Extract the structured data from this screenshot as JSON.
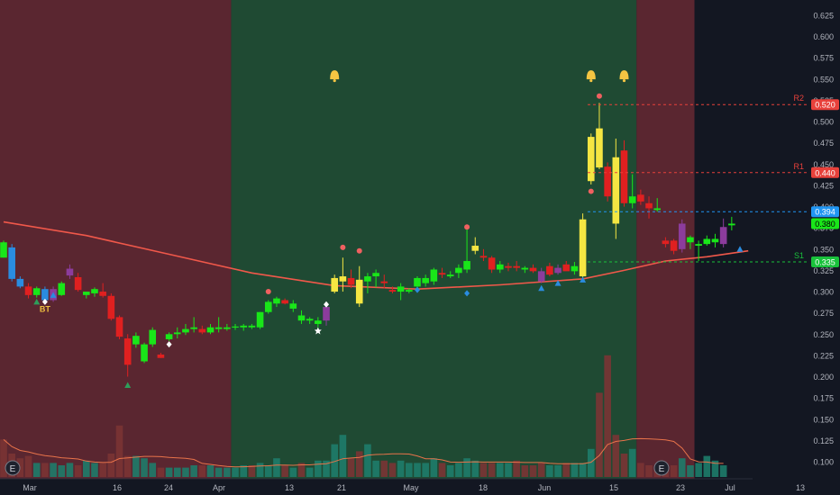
{
  "chart_data": {
    "type": "candlestick",
    "title": "",
    "xlabel": "",
    "ylabel": "",
    "ylim": [
      0.08,
      0.635
    ],
    "y_ticks": [
      0.625,
      0.6,
      0.575,
      0.55,
      0.525,
      0.5,
      0.475,
      0.45,
      0.425,
      0.4,
      0.375,
      0.35,
      0.325,
      0.3,
      0.275,
      0.25,
      0.225,
      0.2,
      0.175,
      0.15,
      0.125,
      0.1
    ],
    "x_tick_labels": [
      "Mar",
      "16",
      "24",
      "Apr",
      "13",
      "21",
      "May",
      "18",
      "Jun",
      "15",
      "23",
      "Jul",
      "13"
    ],
    "regions": [
      {
        "state": "bear",
        "from": 0,
        "to": 28,
        "color": "#5a2630"
      },
      {
        "state": "bull",
        "from": 28,
        "to": 77,
        "color": "#1f4a33"
      },
      {
        "state": "bear",
        "from": 77,
        "to": 84,
        "color": "#5a2630"
      }
    ],
    "candles": [
      {
        "o": 0.358,
        "h": 0.36,
        "l": 0.34,
        "c": 0.34,
        "col": "#19e619"
      },
      {
        "o": 0.352,
        "h": 0.356,
        "l": 0.312,
        "c": 0.315,
        "col": "#2a8ce0"
      },
      {
        "o": 0.315,
        "h": 0.318,
        "l": 0.304,
        "c": 0.306,
        "col": "#2a8ce0"
      },
      {
        "o": 0.306,
        "h": 0.31,
        "l": 0.292,
        "c": 0.296,
        "col": "#e02020"
      },
      {
        "o": 0.296,
        "h": 0.306,
        "l": 0.293,
        "c": 0.304,
        "col": "#19e619"
      },
      {
        "o": 0.303,
        "h": 0.306,
        "l": 0.288,
        "c": 0.29,
        "col": "#2a8ce0"
      },
      {
        "o": 0.29,
        "h": 0.306,
        "l": 0.288,
        "c": 0.303,
        "col": "#8c3c9c"
      },
      {
        "o": 0.296,
        "h": 0.312,
        "l": 0.295,
        "c": 0.31,
        "col": "#19e619"
      },
      {
        "o": 0.319,
        "h": 0.332,
        "l": 0.315,
        "c": 0.327,
        "col": "#8c3c9c"
      },
      {
        "o": 0.317,
        "h": 0.322,
        "l": 0.3,
        "c": 0.302,
        "col": "#e02020"
      },
      {
        "o": 0.296,
        "h": 0.3,
        "l": 0.292,
        "c": 0.3,
        "col": "#19e619"
      },
      {
        "o": 0.298,
        "h": 0.305,
        "l": 0.294,
        "c": 0.303,
        "col": "#19e619"
      },
      {
        "o": 0.3,
        "h": 0.31,
        "l": 0.293,
        "c": 0.295,
        "col": "#e02020"
      },
      {
        "o": 0.295,
        "h": 0.298,
        "l": 0.266,
        "c": 0.268,
        "col": "#e02020"
      },
      {
        "o": 0.27,
        "h": 0.272,
        "l": 0.244,
        "c": 0.247,
        "col": "#e02020"
      },
      {
        "o": 0.245,
        "h": 0.25,
        "l": 0.2,
        "c": 0.214,
        "col": "#e02020"
      },
      {
        "o": 0.238,
        "h": 0.252,
        "l": 0.234,
        "c": 0.248,
        "col": "#19e619"
      },
      {
        "o": 0.218,
        "h": 0.24,
        "l": 0.216,
        "c": 0.238,
        "col": "#19e619"
      },
      {
        "o": 0.238,
        "h": 0.258,
        "l": 0.235,
        "c": 0.255,
        "col": "#19e619"
      },
      {
        "o": 0.226,
        "h": 0.228,
        "l": 0.222,
        "c": 0.222,
        "col": "#e02020"
      },
      {
        "o": 0.244,
        "h": 0.252,
        "l": 0.242,
        "c": 0.25,
        "col": "#19e619"
      },
      {
        "o": 0.25,
        "h": 0.258,
        "l": 0.245,
        "c": 0.252,
        "col": "#19e619"
      },
      {
        "o": 0.252,
        "h": 0.262,
        "l": 0.249,
        "c": 0.256,
        "col": "#19e619"
      },
      {
        "o": 0.256,
        "h": 0.27,
        "l": 0.252,
        "c": 0.258,
        "col": "#19e619"
      },
      {
        "o": 0.256,
        "h": 0.26,
        "l": 0.25,
        "c": 0.252,
        "col": "#e02020"
      },
      {
        "o": 0.252,
        "h": 0.262,
        "l": 0.25,
        "c": 0.258,
        "col": "#19e619"
      },
      {
        "o": 0.256,
        "h": 0.27,
        "l": 0.252,
        "c": 0.258,
        "col": "#19e619"
      },
      {
        "o": 0.256,
        "h": 0.262,
        "l": 0.254,
        "c": 0.258,
        "col": "#19e619"
      },
      {
        "o": 0.258,
        "h": 0.262,
        "l": 0.255,
        "c": 0.259,
        "col": "#19e619"
      },
      {
        "o": 0.258,
        "h": 0.262,
        "l": 0.254,
        "c": 0.26,
        "col": "#19e619"
      },
      {
        "o": 0.26,
        "h": 0.262,
        "l": 0.256,
        "c": 0.258,
        "col": "#19e619"
      },
      {
        "o": 0.258,
        "h": 0.276,
        "l": 0.256,
        "c": 0.276,
        "col": "#19e619"
      },
      {
        "o": 0.276,
        "h": 0.29,
        "l": 0.274,
        "c": 0.288,
        "col": "#19e619"
      },
      {
        "o": 0.286,
        "h": 0.294,
        "l": 0.282,
        "c": 0.292,
        "col": "#19e619"
      },
      {
        "o": 0.29,
        "h": 0.292,
        "l": 0.285,
        "c": 0.286,
        "col": "#e02020"
      },
      {
        "o": 0.28,
        "h": 0.29,
        "l": 0.276,
        "c": 0.286,
        "col": "#19e619"
      },
      {
        "o": 0.272,
        "h": 0.278,
        "l": 0.262,
        "c": 0.266,
        "col": "#19e619"
      },
      {
        "o": 0.266,
        "h": 0.27,
        "l": 0.262,
        "c": 0.268,
        "col": "#19e619"
      },
      {
        "o": 0.262,
        "h": 0.27,
        "l": 0.258,
        "c": 0.266,
        "col": "#19e619"
      },
      {
        "o": 0.266,
        "h": 0.286,
        "l": 0.26,
        "c": 0.282,
        "col": "#8c3c9c"
      },
      {
        "o": 0.3,
        "h": 0.32,
        "l": 0.298,
        "c": 0.316,
        "col": "#f5e642"
      },
      {
        "o": 0.312,
        "h": 0.34,
        "l": 0.3,
        "c": 0.318,
        "col": "#f5e642"
      },
      {
        "o": 0.316,
        "h": 0.326,
        "l": 0.304,
        "c": 0.308,
        "col": "#e02020"
      },
      {
        "o": 0.314,
        "h": 0.33,
        "l": 0.282,
        "c": 0.286,
        "col": "#f5e642"
      },
      {
        "o": 0.312,
        "h": 0.322,
        "l": 0.298,
        "c": 0.318,
        "col": "#19e619"
      },
      {
        "o": 0.318,
        "h": 0.326,
        "l": 0.305,
        "c": 0.322,
        "col": "#19e619"
      },
      {
        "o": 0.312,
        "h": 0.32,
        "l": 0.304,
        "c": 0.31,
        "col": "#e02020"
      },
      {
        "o": 0.302,
        "h": 0.306,
        "l": 0.298,
        "c": 0.3,
        "col": "#e02020"
      },
      {
        "o": 0.3,
        "h": 0.31,
        "l": 0.29,
        "c": 0.306,
        "col": "#19e619"
      },
      {
        "o": 0.3,
        "h": 0.304,
        "l": 0.298,
        "c": 0.302,
        "col": "#19e619"
      },
      {
        "o": 0.306,
        "h": 0.318,
        "l": 0.302,
        "c": 0.316,
        "col": "#19e619"
      },
      {
        "o": 0.31,
        "h": 0.32,
        "l": 0.306,
        "c": 0.316,
        "col": "#19e619"
      },
      {
        "o": 0.312,
        "h": 0.328,
        "l": 0.308,
        "c": 0.326,
        "col": "#19e619"
      },
      {
        "o": 0.322,
        "h": 0.328,
        "l": 0.316,
        "c": 0.32,
        "col": "#e02020"
      },
      {
        "o": 0.318,
        "h": 0.324,
        "l": 0.316,
        "c": 0.32,
        "col": "#19e619"
      },
      {
        "o": 0.322,
        "h": 0.332,
        "l": 0.316,
        "c": 0.328,
        "col": "#19e619"
      },
      {
        "o": 0.326,
        "h": 0.378,
        "l": 0.322,
        "c": 0.336,
        "col": "#19e619"
      },
      {
        "o": 0.348,
        "h": 0.364,
        "l": 0.344,
        "c": 0.354,
        "col": "#f5e642"
      },
      {
        "o": 0.342,
        "h": 0.35,
        "l": 0.336,
        "c": 0.34,
        "col": "#e02020"
      },
      {
        "o": 0.34,
        "h": 0.342,
        "l": 0.322,
        "c": 0.326,
        "col": "#e02020"
      },
      {
        "o": 0.326,
        "h": 0.336,
        "l": 0.322,
        "c": 0.332,
        "col": "#19e619"
      },
      {
        "o": 0.328,
        "h": 0.334,
        "l": 0.324,
        "c": 0.33,
        "col": "#e02020"
      },
      {
        "o": 0.33,
        "h": 0.336,
        "l": 0.324,
        "c": 0.328,
        "col": "#e02020"
      },
      {
        "o": 0.328,
        "h": 0.33,
        "l": 0.322,
        "c": 0.326,
        "col": "#19e619"
      },
      {
        "o": 0.328,
        "h": 0.332,
        "l": 0.322,
        "c": 0.324,
        "col": "#e02020"
      },
      {
        "o": 0.324,
        "h": 0.328,
        "l": 0.31,
        "c": 0.312,
        "col": "#8c3c9c"
      },
      {
        "o": 0.32,
        "h": 0.334,
        "l": 0.318,
        "c": 0.33,
        "col": "#e02020"
      },
      {
        "o": 0.322,
        "h": 0.332,
        "l": 0.32,
        "c": 0.328,
        "col": "#8c3c9c"
      },
      {
        "o": 0.332,
        "h": 0.336,
        "l": 0.326,
        "c": 0.324,
        "col": "#e02020"
      },
      {
        "o": 0.324,
        "h": 0.335,
        "l": 0.32,
        "c": 0.33,
        "col": "#19e619"
      },
      {
        "o": 0.318,
        "h": 0.392,
        "l": 0.316,
        "c": 0.385,
        "col": "#f5e642"
      },
      {
        "o": 0.43,
        "h": 0.486,
        "l": 0.426,
        "c": 0.482,
        "col": "#f5e642"
      },
      {
        "o": 0.492,
        "h": 0.522,
        "l": 0.444,
        "c": 0.446,
        "col": "#f5e642"
      },
      {
        "o": 0.447,
        "h": 0.452,
        "l": 0.406,
        "c": 0.412,
        "col": "#e02020"
      },
      {
        "o": 0.458,
        "h": 0.48,
        "l": 0.362,
        "c": 0.38,
        "col": "#f5e642"
      },
      {
        "o": 0.466,
        "h": 0.478,
        "l": 0.4,
        "c": 0.404,
        "col": "#e02020"
      },
      {
        "o": 0.404,
        "h": 0.438,
        "l": 0.398,
        "c": 0.412,
        "col": "#19e619"
      },
      {
        "o": 0.414,
        "h": 0.42,
        "l": 0.402,
        "c": 0.406,
        "col": "#e02020"
      },
      {
        "o": 0.404,
        "h": 0.412,
        "l": 0.386,
        "c": 0.398,
        "col": "#e02020"
      },
      {
        "o": 0.398,
        "h": 0.41,
        "l": 0.394,
        "c": 0.396,
        "col": "#19e619"
      },
      {
        "o": 0.36,
        "h": 0.364,
        "l": 0.352,
        "c": 0.356,
        "col": "#e02020"
      },
      {
        "o": 0.36,
        "h": 0.362,
        "l": 0.344,
        "c": 0.348,
        "col": "#e02020"
      },
      {
        "o": 0.35,
        "h": 0.385,
        "l": 0.346,
        "c": 0.38,
        "col": "#8c3c9c"
      },
      {
        "o": 0.358,
        "h": 0.366,
        "l": 0.35,
        "c": 0.364,
        "col": "#19e619"
      },
      {
        "o": 0.354,
        "h": 0.36,
        "l": 0.336,
        "c": 0.356,
        "col": "#19e619"
      },
      {
        "o": 0.356,
        "h": 0.366,
        "l": 0.354,
        "c": 0.362,
        "col": "#19e619"
      },
      {
        "o": 0.358,
        "h": 0.368,
        "l": 0.352,
        "c": 0.362,
        "col": "#19e619"
      },
      {
        "o": 0.356,
        "h": 0.386,
        "l": 0.352,
        "c": 0.376,
        "col": "#8c3c9c"
      },
      {
        "o": 0.378,
        "h": 0.388,
        "l": 0.372,
        "c": 0.38,
        "col": "#19e619"
      }
    ],
    "volumes": [
      0.016,
      0.01,
      0.008,
      0.009,
      0.006,
      0.006,
      0.006,
      0.005,
      0.006,
      0.005,
      0.007,
      0.006,
      0.006,
      0.01,
      0.022,
      0.009,
      0.009,
      0.008,
      0.006,
      0.004,
      0.004,
      0.004,
      0.004,
      0.005,
      0.005,
      0.005,
      0.004,
      0.004,
      0.004,
      0.005,
      0.005,
      0.006,
      0.005,
      0.008,
      0.005,
      0.004,
      0.006,
      0.004,
      0.007,
      0.007,
      0.014,
      0.018,
      0.008,
      0.011,
      0.014,
      0.007,
      0.007,
      0.006,
      0.007,
      0.006,
      0.006,
      0.006,
      0.008,
      0.006,
      0.005,
      0.006,
      0.008,
      0.007,
      0.006,
      0.006,
      0.006,
      0.006,
      0.007,
      0.005,
      0.005,
      0.006,
      0.005,
      0.005,
      0.006,
      0.006,
      0.006,
      0.012,
      0.036,
      0.052,
      0.018,
      0.01,
      0.012,
      0.006,
      0.005,
      0.004,
      0.004,
      0.005,
      0.008,
      0.005,
      0.006,
      0.009,
      0.007,
      0.005
    ],
    "moving_average": [
      {
        "idx": 0,
        "value": 0.382
      },
      {
        "idx": 10,
        "value": 0.366
      },
      {
        "idx": 20,
        "value": 0.344
      },
      {
        "idx": 30,
        "value": 0.322
      },
      {
        "idx": 40,
        "value": 0.307
      },
      {
        "idx": 50,
        "value": 0.303
      },
      {
        "idx": 60,
        "value": 0.308
      },
      {
        "idx": 70,
        "value": 0.315
      },
      {
        "idx": 75,
        "value": 0.325
      },
      {
        "idx": 80,
        "value": 0.336
      },
      {
        "idx": 85,
        "value": 0.341
      },
      {
        "idx": 90,
        "value": 0.348
      }
    ],
    "levels": [
      {
        "name": "R2",
        "value": 0.52,
        "color": "#e8413b",
        "label": "0.520"
      },
      {
        "name": "R1",
        "value": 0.44,
        "color": "#e8413b",
        "label": "0.440"
      },
      {
        "name": "",
        "value": 0.394,
        "color": "#2196f3",
        "label": "0.394"
      },
      {
        "name": "S1",
        "value": 0.335,
        "color": "#19c23b",
        "label": "0.335"
      }
    ],
    "current_price": {
      "value": 0.38,
      "label": "0.380",
      "color": "#19e619"
    },
    "annotations": [
      {
        "type": "text",
        "text": "BT",
        "idx": 5,
        "value": 0.276,
        "color": "#f0c040"
      },
      {
        "type": "bell",
        "idx": 40,
        "value": 0.554
      },
      {
        "type": "bell",
        "idx": 71,
        "value": 0.554
      },
      {
        "type": "bell",
        "idx": 75,
        "value": 0.554
      }
    ],
    "grid": false,
    "legend": "none"
  },
  "ui": {
    "e_badge_left": "E",
    "e_badge_right": "E"
  }
}
